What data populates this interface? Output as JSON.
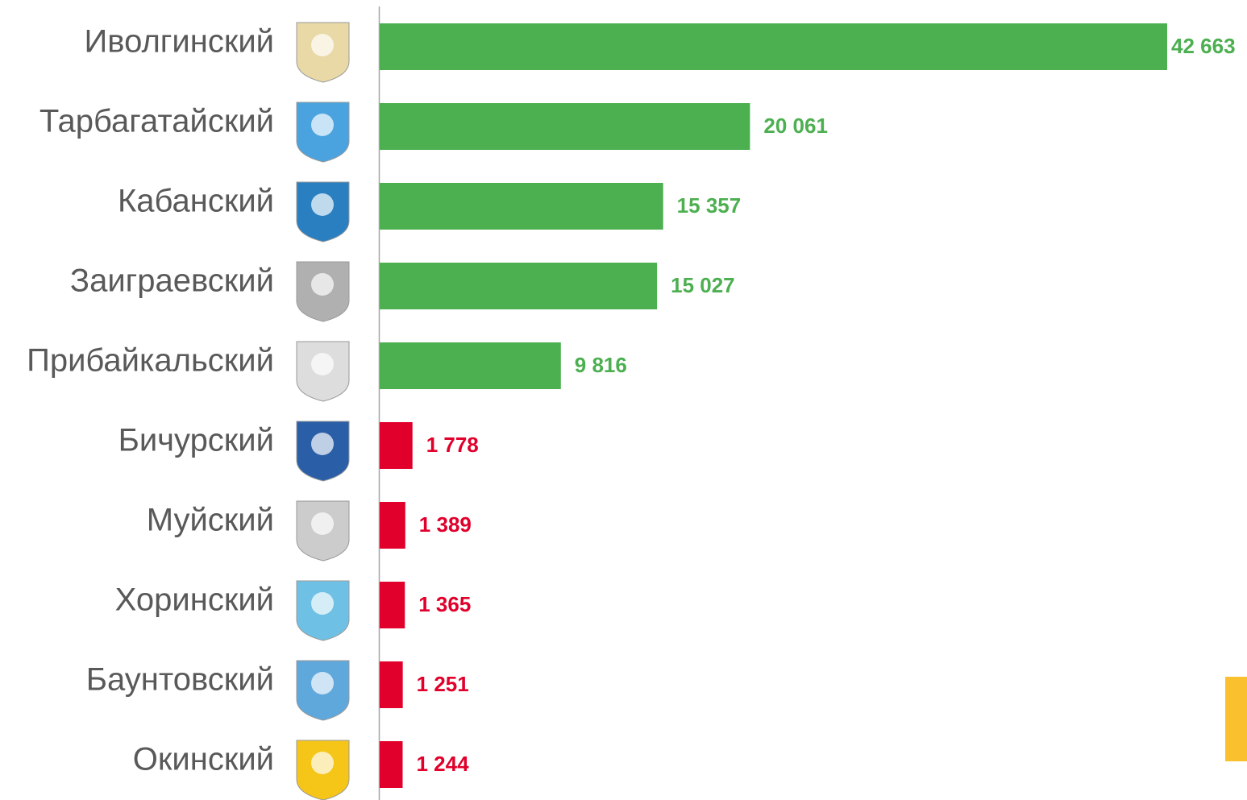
{
  "chart_data": {
    "type": "bar",
    "orientation": "horizontal",
    "categories": [
      "Иволгинский",
      "Тарбагатайский",
      "Кабанский",
      "Заиграевский",
      "Прибайкальский",
      "Бичурский",
      "Муйский",
      "Хоринский",
      "Баунтовский",
      "Окинский"
    ],
    "values": [
      42663,
      20061,
      15357,
      15027,
      9816,
      1778,
      1389,
      1365,
      1251,
      1244
    ],
    "value_labels": [
      "42 663",
      "20 061",
      "15 357",
      "15 027",
      "9 816",
      "1 778",
      "1 389",
      "1 365",
      "1 251",
      "1 244"
    ],
    "colors": [
      "#4caf50",
      "#4caf50",
      "#4caf50",
      "#4caf50",
      "#4caf50",
      "#e0002b",
      "#e0002b",
      "#e0002b",
      "#e0002b",
      "#e0002b"
    ]
  }
}
